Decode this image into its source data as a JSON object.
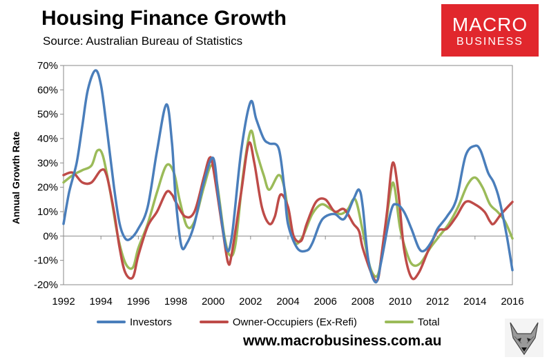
{
  "title": "Housing Finance Growth",
  "subtitle": "Source: Australian Bureau of Statistics",
  "logo": {
    "line1": "MACRO",
    "line2": "BUSINESS",
    "color": "#e1272d"
  },
  "website": "www.macrobusiness.com.au",
  "chart_data": {
    "type": "line",
    "title": "Housing Finance Growth",
    "xlabel": "",
    "ylabel": "Annual Growth Rate",
    "xlim": [
      1992,
      2016
    ],
    "ylim": [
      -20,
      70
    ],
    "x_ticks": [
      "1992",
      "1994",
      "1996",
      "1998",
      "2000",
      "2002",
      "2004",
      "2006",
      "2008",
      "2010",
      "2012",
      "2014",
      "2016"
    ],
    "y_ticks": [
      "70%",
      "60%",
      "50%",
      "40%",
      "30%",
      "20%",
      "10%",
      "0%",
      "-10%",
      "-20%"
    ],
    "y_tick_values": [
      70,
      60,
      50,
      40,
      30,
      20,
      10,
      0,
      -10,
      -20
    ],
    "grid": false,
    "legend_position": "bottom",
    "series": [
      {
        "name": "Investors",
        "color": "#4a7ebb",
        "points": [
          [
            1992,
            5
          ],
          [
            1992.3,
            18
          ],
          [
            1992.7,
            30
          ],
          [
            1993.0,
            45
          ],
          [
            1993.3,
            60
          ],
          [
            1993.7,
            68
          ],
          [
            1994.0,
            62
          ],
          [
            1994.3,
            45
          ],
          [
            1994.7,
            20
          ],
          [
            1995.0,
            5
          ],
          [
            1995.3,
            -1
          ],
          [
            1995.6,
            -1
          ],
          [
            1996.0,
            3
          ],
          [
            1996.5,
            12
          ],
          [
            1997.0,
            35
          ],
          [
            1997.5,
            54
          ],
          [
            1997.8,
            38
          ],
          [
            1998.0,
            15
          ],
          [
            1998.3,
            -4
          ],
          [
            1998.6,
            -3
          ],
          [
            1999.0,
            5
          ],
          [
            1999.5,
            22
          ],
          [
            2000.0,
            32
          ],
          [
            2000.3,
            15
          ],
          [
            2000.7,
            -5
          ],
          [
            2001.0,
            0
          ],
          [
            2001.5,
            35
          ],
          [
            2002.0,
            55
          ],
          [
            2002.3,
            48
          ],
          [
            2002.7,
            40
          ],
          [
            2003.0,
            38
          ],
          [
            2003.5,
            36
          ],
          [
            2003.8,
            20
          ],
          [
            2004.0,
            5
          ],
          [
            2004.5,
            -5
          ],
          [
            2005.0,
            -6
          ],
          [
            2005.3,
            -3
          ],
          [
            2005.7,
            5
          ],
          [
            2006.0,
            8
          ],
          [
            2006.5,
            9
          ],
          [
            2007.0,
            7
          ],
          [
            2007.5,
            15
          ],
          [
            2007.8,
            19
          ],
          [
            2008.0,
            12
          ],
          [
            2008.3,
            -10
          ],
          [
            2008.7,
            -19
          ],
          [
            2009.0,
            -10
          ],
          [
            2009.5,
            10
          ],
          [
            2009.8,
            13
          ],
          [
            2010.2,
            10
          ],
          [
            2010.6,
            3
          ],
          [
            2011.0,
            -5
          ],
          [
            2011.3,
            -6
          ],
          [
            2011.7,
            -2
          ],
          [
            2012.0,
            3
          ],
          [
            2012.5,
            8
          ],
          [
            2013.0,
            15
          ],
          [
            2013.5,
            33
          ],
          [
            2014.0,
            37
          ],
          [
            2014.3,
            35
          ],
          [
            2014.7,
            26
          ],
          [
            2015.0,
            22
          ],
          [
            2015.3,
            15
          ],
          [
            2015.7,
            0
          ],
          [
            2016.0,
            -14
          ]
        ]
      },
      {
        "name": "Owner-Occupiers (Ex-Refi)",
        "color": "#be4b48",
        "points": [
          [
            1992,
            25
          ],
          [
            1992.5,
            26
          ],
          [
            1993.0,
            22
          ],
          [
            1993.5,
            22
          ],
          [
            1994.0,
            27
          ],
          [
            1994.3,
            25
          ],
          [
            1994.7,
            10
          ],
          [
            1995.0,
            -5
          ],
          [
            1995.3,
            -15
          ],
          [
            1995.7,
            -17
          ],
          [
            1996.0,
            -8
          ],
          [
            1996.5,
            4
          ],
          [
            1997.0,
            10
          ],
          [
            1997.5,
            18
          ],
          [
            1997.8,
            17
          ],
          [
            1998.0,
            14
          ],
          [
            1998.5,
            8
          ],
          [
            1999.0,
            10
          ],
          [
            1999.5,
            24
          ],
          [
            1999.8,
            32
          ],
          [
            2000.0,
            28
          ],
          [
            2000.5,
            3
          ],
          [
            2000.8,
            -11
          ],
          [
            2001.0,
            -7
          ],
          [
            2001.5,
            18
          ],
          [
            2001.9,
            38
          ],
          [
            2002.2,
            30
          ],
          [
            2002.6,
            12
          ],
          [
            2003.0,
            5
          ],
          [
            2003.3,
            8
          ],
          [
            2003.6,
            17
          ],
          [
            2004.0,
            12
          ],
          [
            2004.3,
            0
          ],
          [
            2004.7,
            -2
          ],
          [
            2005.0,
            5
          ],
          [
            2005.5,
            14
          ],
          [
            2006.0,
            15
          ],
          [
            2006.5,
            10
          ],
          [
            2007.0,
            11
          ],
          [
            2007.5,
            5
          ],
          [
            2007.8,
            2
          ],
          [
            2008.0,
            -5
          ],
          [
            2008.5,
            -16
          ],
          [
            2008.8,
            -18
          ],
          [
            2009.0,
            -8
          ],
          [
            2009.3,
            10
          ],
          [
            2009.6,
            30
          ],
          [
            2009.9,
            18
          ],
          [
            2010.2,
            -5
          ],
          [
            2010.6,
            -17
          ],
          [
            2011.0,
            -15
          ],
          [
            2011.5,
            -6
          ],
          [
            2012.0,
            2
          ],
          [
            2012.5,
            3
          ],
          [
            2013.0,
            8
          ],
          [
            2013.5,
            14
          ],
          [
            2014.0,
            13
          ],
          [
            2014.5,
            10
          ],
          [
            2014.8,
            6
          ],
          [
            2015.0,
            5
          ],
          [
            2015.4,
            9
          ],
          [
            2016.0,
            14
          ]
        ]
      },
      {
        "name": "Total",
        "color": "#9bbb59",
        "points": [
          [
            1992,
            22
          ],
          [
            1992.5,
            25
          ],
          [
            1993.0,
            27
          ],
          [
            1993.5,
            29
          ],
          [
            1993.8,
            35
          ],
          [
            1994.1,
            33
          ],
          [
            1994.5,
            18
          ],
          [
            1994.9,
            0
          ],
          [
            1995.3,
            -11
          ],
          [
            1995.7,
            -13
          ],
          [
            1996.0,
            -5
          ],
          [
            1996.5,
            5
          ],
          [
            1997.0,
            18
          ],
          [
            1997.5,
            29
          ],
          [
            1997.9,
            26
          ],
          [
            1998.2,
            15
          ],
          [
            1998.6,
            4
          ],
          [
            1999.0,
            6
          ],
          [
            1999.5,
            20
          ],
          [
            1999.9,
            29
          ],
          [
            2000.2,
            22
          ],
          [
            2000.6,
            0
          ],
          [
            2000.9,
            -8
          ],
          [
            2001.2,
            -3
          ],
          [
            2001.6,
            25
          ],
          [
            2002.0,
            43
          ],
          [
            2002.3,
            35
          ],
          [
            2002.7,
            25
          ],
          [
            2003.0,
            19
          ],
          [
            2003.5,
            25
          ],
          [
            2003.8,
            20
          ],
          [
            2004.1,
            5
          ],
          [
            2004.4,
            -3
          ],
          [
            2004.8,
            0
          ],
          [
            2005.3,
            9
          ],
          [
            2005.8,
            13
          ],
          [
            2006.3,
            11
          ],
          [
            2006.8,
            9
          ],
          [
            2007.2,
            11
          ],
          [
            2007.6,
            15
          ],
          [
            2008.0,
            2
          ],
          [
            2008.4,
            -13
          ],
          [
            2008.8,
            -16
          ],
          [
            2009.1,
            -3
          ],
          [
            2009.5,
            19
          ],
          [
            2009.7,
            20
          ],
          [
            2010.0,
            3
          ],
          [
            2010.4,
            -8
          ],
          [
            2010.7,
            -12
          ],
          [
            2011.1,
            -11
          ],
          [
            2011.6,
            -5
          ],
          [
            2012.1,
            0
          ],
          [
            2012.6,
            5
          ],
          [
            2013.1,
            12
          ],
          [
            2013.6,
            21
          ],
          [
            2014.0,
            24
          ],
          [
            2014.4,
            20
          ],
          [
            2014.8,
            13
          ],
          [
            2015.2,
            10
          ],
          [
            2015.6,
            6
          ],
          [
            2016.0,
            -1
          ]
        ]
      }
    ]
  }
}
